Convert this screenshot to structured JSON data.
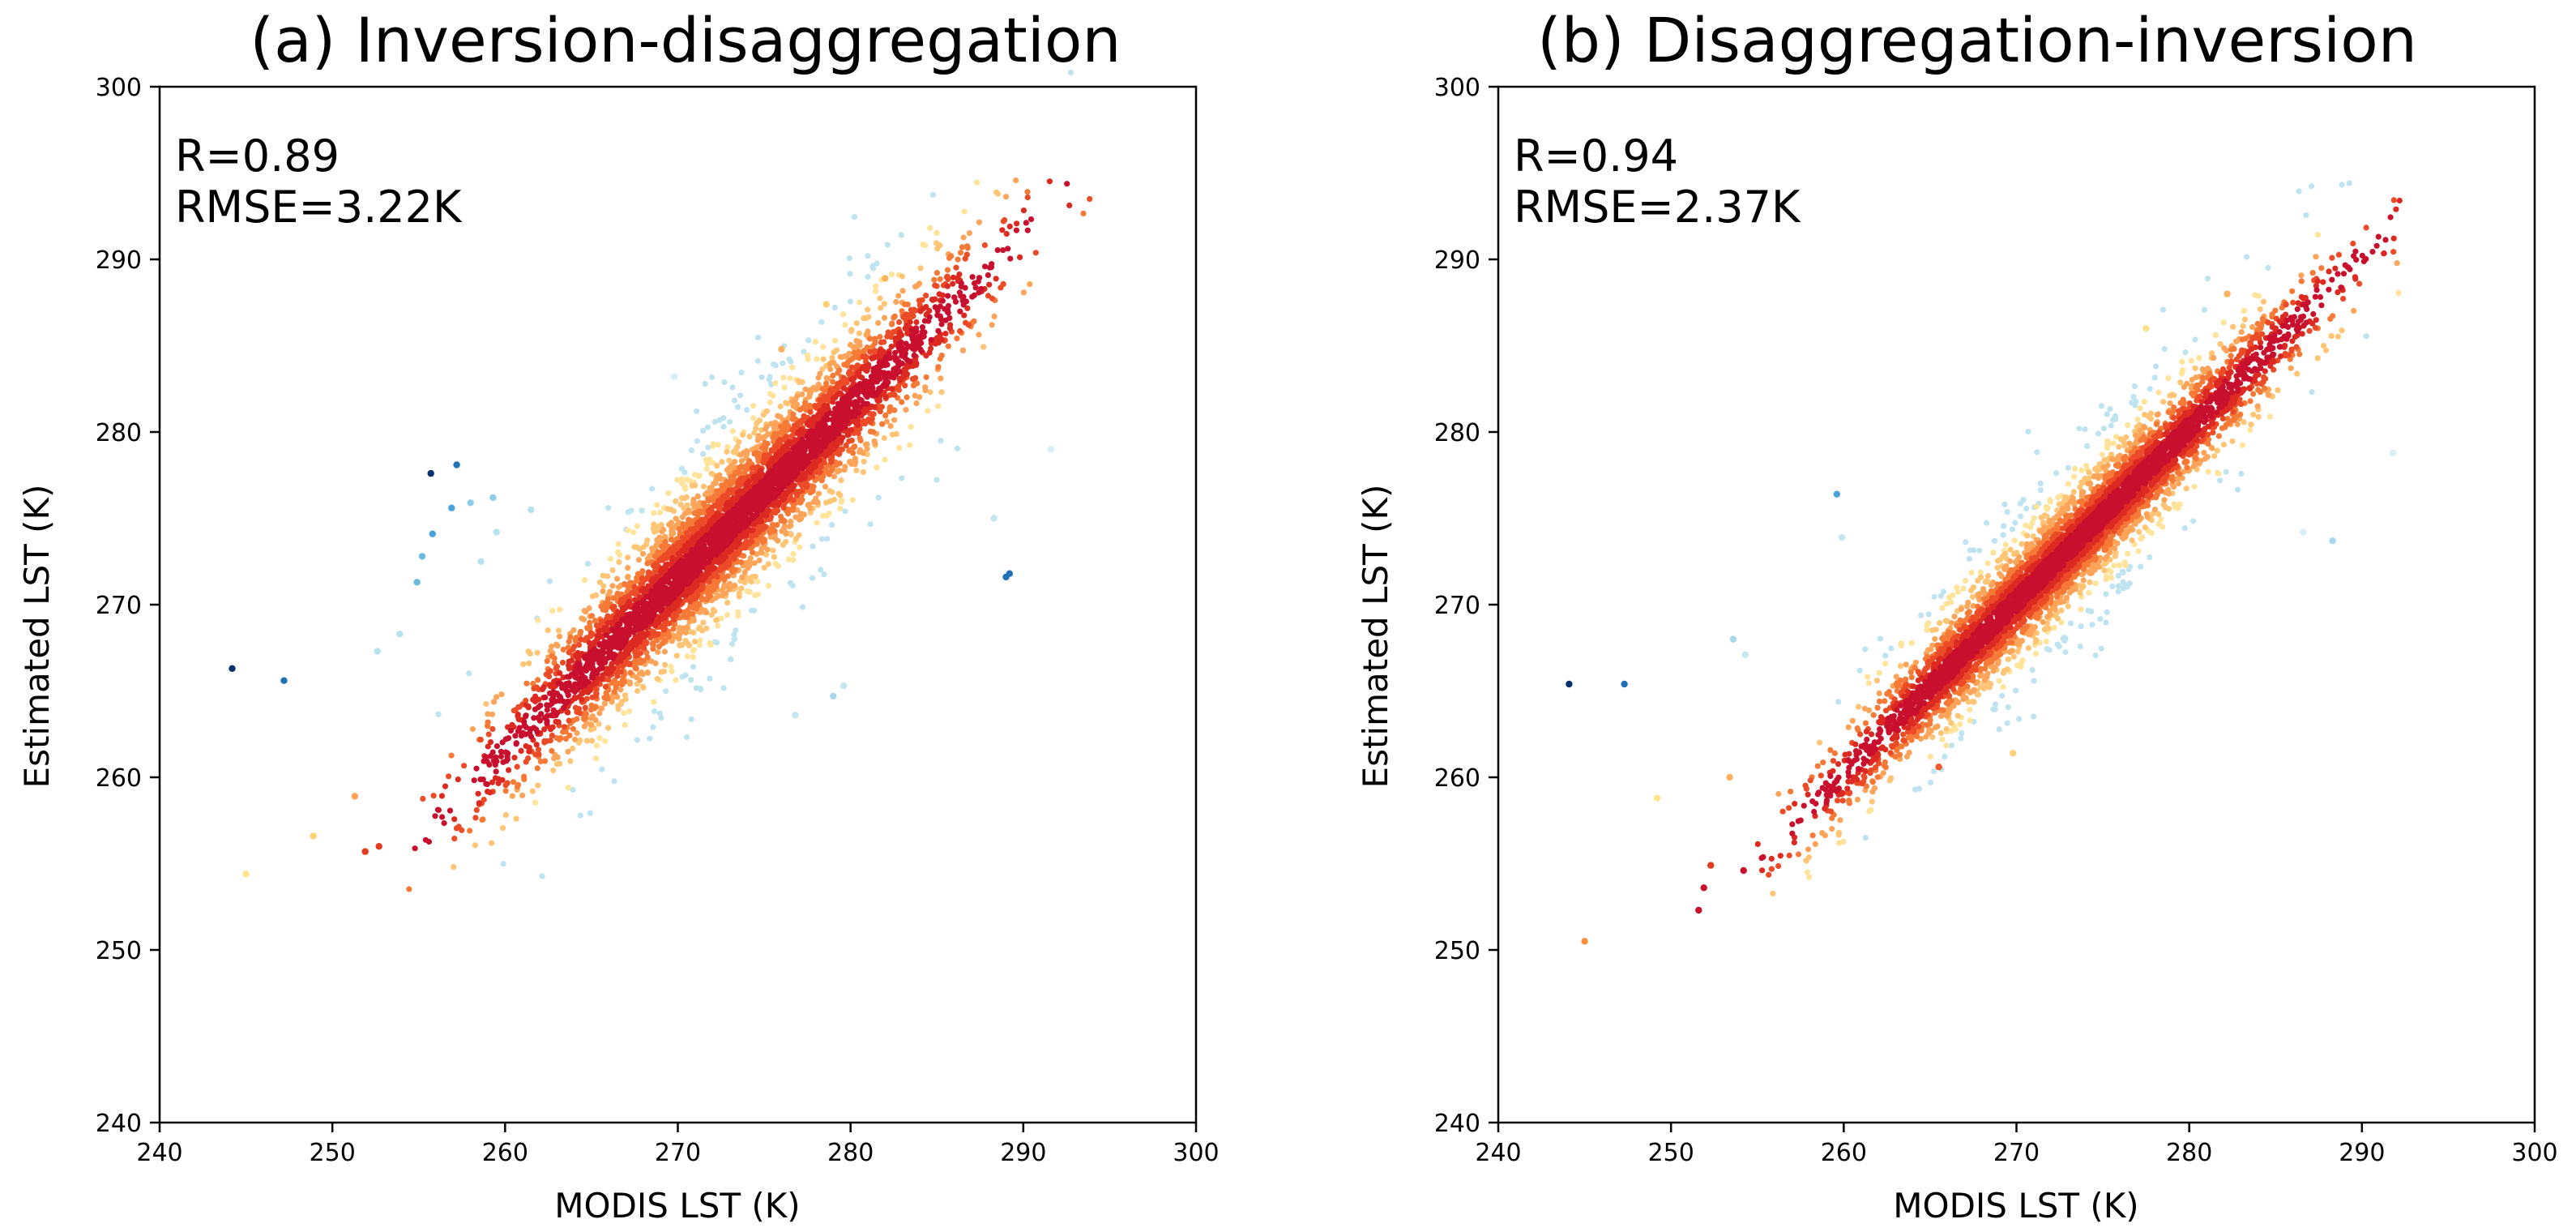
{
  "chart_data": [
    {
      "type": "scatter",
      "title": "(a) Inversion-disaggregation",
      "xlabel": "MODIS LST (K)",
      "ylabel": "Estimated LST (K)",
      "xlim": [
        240,
        300
      ],
      "ylim": [
        240,
        300
      ],
      "xticks": [
        "240",
        "250",
        "260",
        "270",
        "280",
        "290",
        "300"
      ],
      "yticks": [
        "240",
        "250",
        "260",
        "270",
        "280",
        "290",
        "300"
      ],
      "stats": [
        "R=0.89",
        "RMSE=3.22K"
      ],
      "colormap": "density, dark red (dense) to yellow to light blue to dark blue (sparse)",
      "density_core": {
        "x_range": [
          254,
          294
        ],
        "core_intercept": 1.5,
        "core_spread": 1.6,
        "outer_spread": 3.3,
        "point_count": 5200
      },
      "outliers": [
        {
          "x": 244.2,
          "y": 266.3,
          "color": "#08306b"
        },
        {
          "x": 247.2,
          "y": 265.6,
          "color": "#2171b5"
        },
        {
          "x": 255.7,
          "y": 277.6,
          "color": "#08306b"
        },
        {
          "x": 257.2,
          "y": 278.1,
          "color": "#2171b5"
        },
        {
          "x": 256.9,
          "y": 275.6,
          "color": "#4aa3d8"
        },
        {
          "x": 255.8,
          "y": 274.1,
          "color": "#4aa3d8"
        },
        {
          "x": 255.2,
          "y": 272.8,
          "color": "#6bbbe0"
        },
        {
          "x": 254.9,
          "y": 271.3,
          "color": "#6bbbe0"
        },
        {
          "x": 258.0,
          "y": 275.9,
          "color": "#8ecfe8"
        },
        {
          "x": 259.3,
          "y": 276.2,
          "color": "#8ecfe8"
        },
        {
          "x": 259.5,
          "y": 274.2,
          "color": "#b9e2ef"
        },
        {
          "x": 261.5,
          "y": 275.5,
          "color": "#b9e2ef"
        },
        {
          "x": 258.6,
          "y": 272.5,
          "color": "#b9e2ef"
        },
        {
          "x": 252.6,
          "y": 267.3,
          "color": "#b9e2ef"
        },
        {
          "x": 253.9,
          "y": 268.3,
          "color": "#b9e2ef"
        },
        {
          "x": 289.0,
          "y": 271.6,
          "color": "#2171b5"
        },
        {
          "x": 289.2,
          "y": 271.8,
          "color": "#2171b5"
        },
        {
          "x": 279.0,
          "y": 264.7,
          "color": "#a8d6ea"
        },
        {
          "x": 279.6,
          "y": 265.3,
          "color": "#c4e6f1"
        },
        {
          "x": 288.3,
          "y": 275.0,
          "color": "#c4e6f1"
        },
        {
          "x": 291.6,
          "y": 279.0,
          "color": "#d7eef5"
        },
        {
          "x": 276.8,
          "y": 263.6,
          "color": "#c4e6f1"
        },
        {
          "x": 269.8,
          "y": 283.2,
          "color": "#d7eef5"
        },
        {
          "x": 245.0,
          "y": 254.4,
          "color": "#ffe58a"
        },
        {
          "x": 248.9,
          "y": 256.6,
          "color": "#ffd36e"
        },
        {
          "x": 251.9,
          "y": 255.7,
          "color": "#e23b1f"
        },
        {
          "x": 252.7,
          "y": 256.0,
          "color": "#e23b1f"
        },
        {
          "x": 251.3,
          "y": 258.9,
          "color": "#fca35a"
        },
        {
          "x": 282.0,
          "y": 288.9,
          "color": "#fdb462"
        },
        {
          "x": 278.6,
          "y": 287.4,
          "color": "#fdd17a"
        },
        {
          "x": 276.0,
          "y": 284.8,
          "color": "#fdb462"
        }
      ]
    },
    {
      "type": "scatter",
      "title": "(b) Disaggregation-inversion",
      "xlabel": "MODIS LST (K)",
      "ylabel": "Estimated LST (K)",
      "xlim": [
        240,
        300
      ],
      "ylim": [
        240,
        300
      ],
      "xticks": [
        "240",
        "250",
        "260",
        "270",
        "280",
        "290",
        "300"
      ],
      "yticks": [
        "240",
        "250",
        "260",
        "270",
        "280",
        "290",
        "300"
      ],
      "stats": [
        "R=0.94",
        "RMSE=2.37K"
      ],
      "colormap": "density, dark red (dense) to yellow to light blue to dark blue (sparse)",
      "density_core": {
        "x_range": [
          255,
          294
        ],
        "core_intercept": 0.2,
        "core_spread": 1.2,
        "outer_spread": 2.5,
        "point_count": 5200
      },
      "outliers": [
        {
          "x": 244.1,
          "y": 265.4,
          "color": "#08306b"
        },
        {
          "x": 247.3,
          "y": 265.4,
          "color": "#2171b5"
        },
        {
          "x": 259.6,
          "y": 276.4,
          "color": "#4aa3d8"
        },
        {
          "x": 253.6,
          "y": 268.0,
          "color": "#a8d6ea"
        },
        {
          "x": 254.3,
          "y": 267.1,
          "color": "#c4e6f1"
        },
        {
          "x": 259.9,
          "y": 273.9,
          "color": "#c4e6f1"
        },
        {
          "x": 288.3,
          "y": 273.7,
          "color": "#a8d6ea"
        },
        {
          "x": 291.8,
          "y": 278.8,
          "color": "#d7eef5"
        },
        {
          "x": 286.6,
          "y": 274.2,
          "color": "#d7eef5"
        },
        {
          "x": 245.0,
          "y": 250.5,
          "color": "#fc8d3c"
        },
        {
          "x": 249.2,
          "y": 258.8,
          "color": "#ffe58a"
        },
        {
          "x": 251.6,
          "y": 252.3,
          "color": "#c8102e"
        },
        {
          "x": 251.9,
          "y": 253.6,
          "color": "#c8102e"
        },
        {
          "x": 252.3,
          "y": 254.9,
          "color": "#e23b1f"
        },
        {
          "x": 254.2,
          "y": 254.6,
          "color": "#c8102e"
        },
        {
          "x": 253.4,
          "y": 260.0,
          "color": "#fdb462"
        },
        {
          "x": 265.5,
          "y": 260.6,
          "color": "#f05a2c"
        },
        {
          "x": 269.8,
          "y": 261.4,
          "color": "#fdd17a"
        },
        {
          "x": 282.2,
          "y": 288.0,
          "color": "#fdb462"
        },
        {
          "x": 277.5,
          "y": 286.0,
          "color": "#fee08b"
        }
      ]
    }
  ]
}
